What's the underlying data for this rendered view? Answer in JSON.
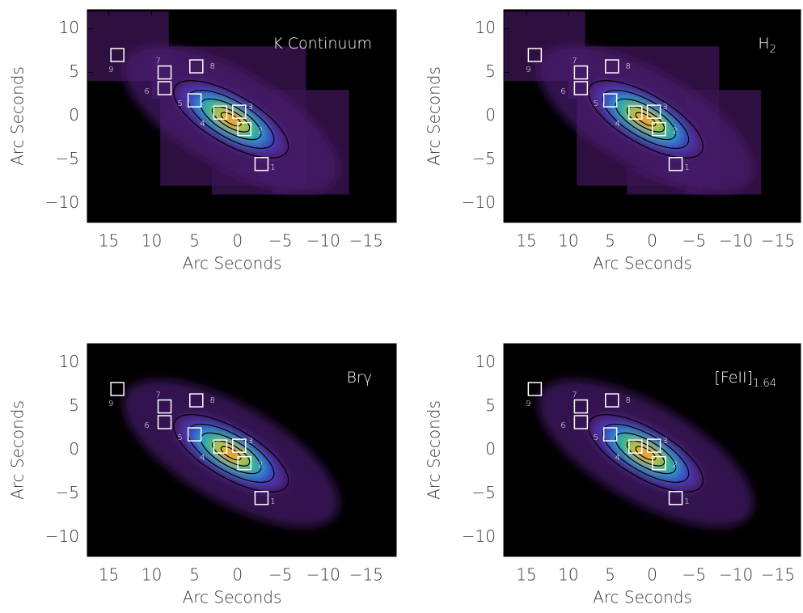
{
  "chart_data": [
    {
      "type": "image",
      "title": "K Continuum",
      "x_label": "Arc Seconds",
      "y_label": "Arc Seconds",
      "xlim": [
        17.5,
        -18.5
      ],
      "ylim": [
        -12.2,
        12.2
      ],
      "xticks": [
        15,
        10,
        5,
        0,
        {
          "value": -5,
          "label": "−5"
        },
        {
          "value": -10,
          "label": "−10"
        },
        {
          "value": -15,
          "label": "−15"
        }
      ],
      "yticks": [
        10,
        5,
        0,
        {
          "value": -5,
          "label": "−5"
        },
        {
          "value": -10,
          "label": "−10"
        }
      ]
    },
    {
      "type": "image",
      "title": "H",
      "title_sub": "2",
      "x_label": "Arc Seconds",
      "y_label": "Arc Seconds",
      "xlim": [
        17.7,
        -17.7
      ],
      "ylim": [
        -12.2,
        12.2
      ],
      "xticks": [
        15,
        10,
        5,
        0,
        {
          "value": -5,
          "label": "−5"
        },
        {
          "value": -10,
          "label": "−10"
        },
        {
          "value": -15,
          "label": "−15"
        }
      ],
      "yticks": [
        10,
        5,
        0,
        {
          "value": -5,
          "label": "−5"
        },
        {
          "value": -10,
          "label": "−10"
        }
      ]
    },
    {
      "type": "image",
      "title": "Brγ",
      "x_label": "Arc Seconds",
      "y_label": "Arc Seconds",
      "xlim": [
        17.5,
        -18.5
      ],
      "ylim": [
        -12.2,
        12.2
      ],
      "xticks": [
        15,
        10,
        5,
        0,
        {
          "value": -5,
          "label": "−5"
        },
        {
          "value": -10,
          "label": "−10"
        },
        {
          "value": -15,
          "label": "−15"
        }
      ],
      "yticks": [
        10,
        5,
        0,
        {
          "value": -5,
          "label": "−5"
        },
        {
          "value": -10,
          "label": "−10"
        }
      ]
    },
    {
      "type": "image",
      "title": "[FeII]",
      "title_sub": "1.64",
      "x_label": "Arc Seconds",
      "y_label": "Arc Seconds",
      "xlim": [
        17.7,
        -17.7
      ],
      "ylim": [
        -12.2,
        12.2
      ],
      "xticks": [
        15,
        10,
        5,
        0,
        {
          "value": -5,
          "label": "−5"
        },
        {
          "value": -10,
          "label": "−10"
        },
        {
          "value": -15,
          "label": "−15"
        }
      ],
      "yticks": [
        10,
        5,
        0,
        {
          "value": -5,
          "label": "−5"
        },
        {
          "value": -10,
          "label": "−10"
        }
      ]
    }
  ],
  "apertures": [
    {
      "label": "1",
      "x": -2.8,
      "y": -5.5
    },
    {
      "label": "2",
      "x": -0.8,
      "y": -1.5
    },
    {
      "label": "3",
      "x": -0.2,
      "y": 0.5
    },
    {
      "label": "4",
      "x": 2,
      "y": 0.4
    },
    {
      "label": "5",
      "x": 5,
      "y": 1.8
    },
    {
      "label": "6",
      "x": 8.5,
      "y": 3.2
    },
    {
      "label": "7",
      "x": 8.5,
      "y": 5
    },
    {
      "label": "8",
      "x": 4.8,
      "y": 5.7
    },
    {
      "label": "9",
      "x": 14,
      "y": 7
    }
  ]
}
